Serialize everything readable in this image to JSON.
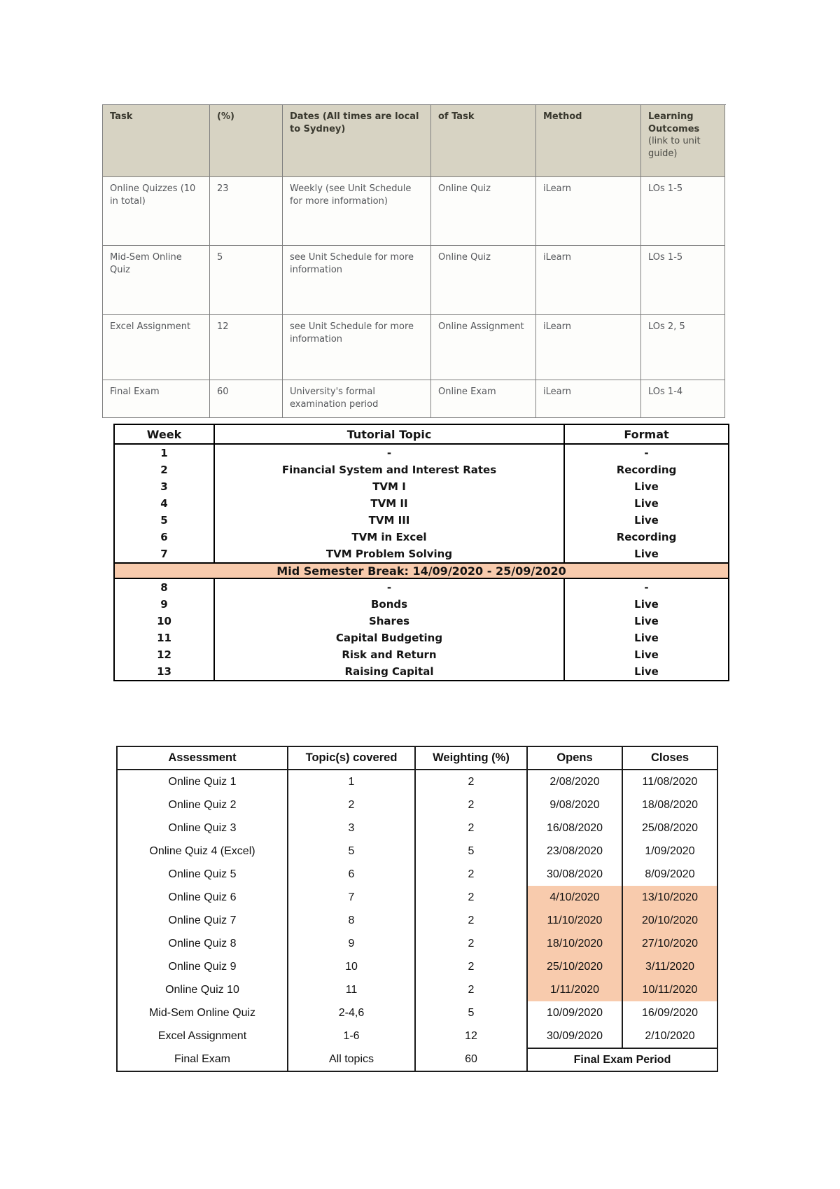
{
  "document": {
    "colors": {
      "task_header_bg": "#d7d3c3",
      "task_border": "#7f7f7f",
      "task_text": "#54565a",
      "highlight_bg": "#f8cbad"
    },
    "task_table": {
      "headers": {
        "task": "Task",
        "weight": "(%)",
        "dates": "Dates (All times are local to Sydney)",
        "of_task": "of Task",
        "method": "Method",
        "learning_outcomes": "Learning Outcomes",
        "learning_outcomes_note": "(link to unit guide)"
      },
      "rows": [
        [
          "Online Quizzes (10 in total)",
          "23",
          "Weekly (see Unit Schedule for more information)",
          "Online Quiz",
          "iLearn",
          "LOs 1-5"
        ],
        [
          "Mid-Sem Online Quiz",
          "5",
          "see Unit Schedule for more information",
          "Online Quiz",
          "iLearn",
          "LOs 1-5"
        ],
        [
          "Excel Assignment",
          "12",
          "see Unit Schedule for more information",
          "Online Assignment",
          "iLearn",
          "LOs 2, 5"
        ],
        [
          "Final Exam",
          "60",
          "University's formal examination period",
          "Online Exam",
          "iLearn",
          "LOs 1-4"
        ]
      ]
    },
    "tutorial_table": {
      "headers": [
        "Week",
        "Tutorial Topic",
        "Format"
      ],
      "rows": [
        {
          "week": "1",
          "topic": "-",
          "format": "-"
        },
        {
          "week": "2",
          "topic": "Financial System and Interest Rates",
          "format": "Recording"
        },
        {
          "week": "3",
          "topic": "TVM I",
          "format": "Live"
        },
        {
          "week": "4",
          "topic": "TVM II",
          "format": "Live"
        },
        {
          "week": "5",
          "topic": "TVM III",
          "format": "Live"
        },
        {
          "week": "6",
          "topic": "TVM in Excel",
          "format": "Recording"
        },
        {
          "week": "7",
          "topic": "TVM Problem Solving",
          "format": "Live"
        },
        {
          "break": "Mid Semester Break: 14/09/2020 - 25/09/2020"
        },
        {
          "week": "8",
          "topic": "-",
          "format": "-"
        },
        {
          "week": "9",
          "topic": "Bonds",
          "format": "Live"
        },
        {
          "week": "10",
          "topic": "Shares",
          "format": "Live"
        },
        {
          "week": "11",
          "topic": "Capital Budgeting",
          "format": "Live"
        },
        {
          "week": "12",
          "topic": "Risk and Return",
          "format": "Live"
        },
        {
          "week": "13",
          "topic": "Raising Capital",
          "format": "Live"
        }
      ]
    },
    "assessment_table": {
      "headers": [
        "Assessment",
        "Topic(s) covered",
        "Weighting (%)",
        "Opens",
        "Closes"
      ],
      "rows": [
        {
          "assessment": "Online Quiz 1",
          "topics": "1",
          "weighting": "2",
          "opens": "2/08/2020",
          "closes": "11/08/2020",
          "highlight": false
        },
        {
          "assessment": "Online Quiz 2",
          "topics": "2",
          "weighting": "2",
          "opens": "9/08/2020",
          "closes": "18/08/2020",
          "highlight": false
        },
        {
          "assessment": "Online Quiz 3",
          "topics": "3",
          "weighting": "2",
          "opens": "16/08/2020",
          "closes": "25/08/2020",
          "highlight": false
        },
        {
          "assessment": "Online Quiz 4 (Excel)",
          "topics": "5",
          "weighting": "5",
          "opens": "23/08/2020",
          "closes": "1/09/2020",
          "highlight": false
        },
        {
          "assessment": "Online Quiz 5",
          "topics": "6",
          "weighting": "2",
          "opens": "30/08/2020",
          "closes": "8/09/2020",
          "highlight": false
        },
        {
          "assessment": "Online Quiz 6",
          "topics": "7",
          "weighting": "2",
          "opens": "4/10/2020",
          "closes": "13/10/2020",
          "highlight": true
        },
        {
          "assessment": "Online Quiz 7",
          "topics": "8",
          "weighting": "2",
          "opens": "11/10/2020",
          "closes": "20/10/2020",
          "highlight": true
        },
        {
          "assessment": "Online Quiz 8",
          "topics": "9",
          "weighting": "2",
          "opens": "18/10/2020",
          "closes": "27/10/2020",
          "highlight": true
        },
        {
          "assessment": "Online Quiz 9",
          "topics": "10",
          "weighting": "2",
          "opens": "25/10/2020",
          "closes": "3/11/2020",
          "highlight": true
        },
        {
          "assessment": "Online Quiz 10",
          "topics": "11",
          "weighting": "2",
          "opens": "1/11/2020",
          "closes": "10/11/2020",
          "highlight": true
        },
        {
          "assessment": "Mid-Sem Online Quiz",
          "topics": "2-4,6",
          "weighting": "5",
          "opens": "10/09/2020",
          "closes": "16/09/2020",
          "highlight": false
        },
        {
          "assessment": "Excel Assignment",
          "topics": "1-6",
          "weighting": "12",
          "opens": "30/09/2020",
          "closes": "2/10/2020",
          "highlight": false
        },
        {
          "assessment": "Final Exam",
          "topics": "All topics",
          "weighting": "60",
          "merged": "Final Exam Period"
        }
      ]
    }
  }
}
